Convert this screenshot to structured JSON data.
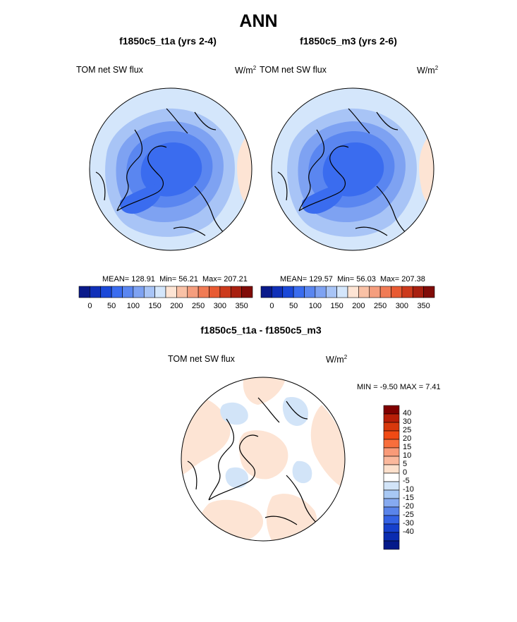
{
  "chart_data": [
    {
      "type": "heatmap",
      "projection": "north-polar-stereographic",
      "title": "f1850c5_t1a (yrs 2-4)",
      "variable_label": "TOM net SW flux",
      "units_base": "W/m",
      "units_exp": "2",
      "stats": {
        "mean_label": "MEAN=",
        "mean": "128.91",
        "min_label": "Min=",
        "min": "56.21",
        "max_label": "Max=",
        "max": "207.21"
      },
      "colorbar": {
        "orientation": "horizontal",
        "colors": [
          "#0a1a8a",
          "#1030b8",
          "#1a48d8",
          "#3a6cef",
          "#5a86f0",
          "#7ea2f2",
          "#a8c4f6",
          "#d4e6fb",
          "#fde4d4",
          "#f9c1a6",
          "#f59e7e",
          "#f07b55",
          "#e85a32",
          "#cc3a1c",
          "#a82010",
          "#800c08"
        ],
        "levels": [
          0,
          25,
          50,
          75,
          100,
          125,
          150,
          175,
          200,
          225,
          250,
          275,
          300,
          325,
          350
        ],
        "tick_labels": [
          "0",
          "50",
          "100",
          "150",
          "200",
          "250",
          "300",
          "350"
        ]
      }
    },
    {
      "type": "heatmap",
      "projection": "north-polar-stereographic",
      "title": "f1850c5_m3 (yrs 2-6)",
      "variable_label": "TOM net SW flux",
      "units_base": "W/m",
      "units_exp": "2",
      "stats": {
        "mean_label": "MEAN=",
        "mean": "129.57",
        "min_label": "Min=",
        "min": "56.03",
        "max_label": "Max=",
        "max": "207.38"
      },
      "colorbar": {
        "orientation": "horizontal",
        "colors": [
          "#0a1a8a",
          "#1030b8",
          "#1a48d8",
          "#3a6cef",
          "#5a86f0",
          "#7ea2f2",
          "#a8c4f6",
          "#d4e6fb",
          "#fde4d4",
          "#f9c1a6",
          "#f59e7e",
          "#f07b55",
          "#e85a32",
          "#cc3a1c",
          "#a82010",
          "#800c08"
        ],
        "levels": [
          0,
          25,
          50,
          75,
          100,
          125,
          150,
          175,
          200,
          225,
          250,
          275,
          300,
          325,
          350
        ],
        "tick_labels": [
          "0",
          "50",
          "100",
          "150",
          "200",
          "250",
          "300",
          "350"
        ]
      }
    },
    {
      "type": "heatmap",
      "projection": "north-polar-stereographic",
      "title": "f1850c5_t1a - f1850c5_m3",
      "variable_label": "TOM net SW flux",
      "units_base": "W/m",
      "units_exp": "2",
      "stats": {
        "min_label": "MIN =",
        "min": "-9.50",
        "max_label": "MAX =",
        "max": "7.41"
      },
      "colorbar": {
        "orientation": "vertical",
        "colors": [
          "#800000",
          "#b81e08",
          "#d8380c",
          "#f04a14",
          "#f86e3c",
          "#f99a78",
          "#fbb89c",
          "#fde0cc",
          "#ffffff",
          "#d2e4f8",
          "#a8c8f4",
          "#86aaf0",
          "#5a84ea",
          "#3462e4",
          "#1640cc",
          "#0a2cb0",
          "#041a8a"
        ],
        "tick_labels": [
          "40",
          "30",
          "25",
          "20",
          "15",
          "10",
          "5",
          "0",
          "-5",
          "-10",
          "-15",
          "-20",
          "-25",
          "-30",
          "-40"
        ]
      }
    }
  ],
  "page": {
    "title": "ANN"
  },
  "colors": {
    "land_outline": "#000000",
    "ocean_base": "#d4e6fb",
    "warm": "#fde4d4"
  }
}
